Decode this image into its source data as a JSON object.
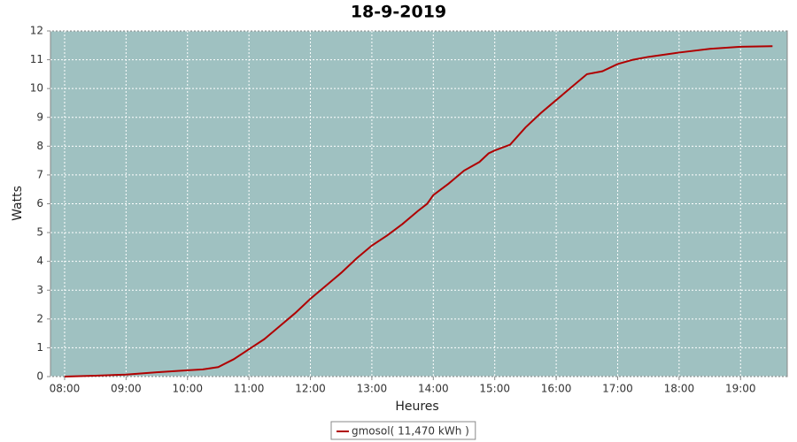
{
  "chart_data": {
    "type": "line",
    "title": "18-9-2019",
    "x_label": "Heures",
    "y_label": "Watts",
    "x": [
      8.0,
      8.5,
      9.0,
      9.5,
      10.0,
      10.25,
      10.5,
      10.75,
      11.0,
      11.25,
      11.5,
      11.75,
      12.0,
      12.25,
      12.5,
      12.75,
      13.0,
      13.25,
      13.5,
      13.75,
      13.9,
      14.0,
      14.25,
      14.5,
      14.75,
      14.9,
      15.0,
      15.25,
      15.5,
      15.75,
      16.0,
      16.25,
      16.5,
      16.75,
      17.0,
      17.25,
      17.5,
      18.0,
      18.5,
      19.0,
      19.52
    ],
    "series": [
      {
        "name": "gmosol( 11,470 kWh )",
        "color": "#b00000",
        "values": [
          0,
          0.03,
          0.07,
          0.15,
          0.22,
          0.25,
          0.33,
          0.6,
          0.95,
          1.3,
          1.75,
          2.2,
          2.7,
          3.15,
          3.6,
          4.1,
          4.55,
          4.9,
          5.3,
          5.75,
          6.0,
          6.3,
          6.7,
          7.15,
          7.45,
          7.75,
          7.85,
          8.05,
          8.65,
          9.15,
          9.6,
          10.05,
          10.5,
          10.6,
          10.85,
          11.0,
          11.1,
          11.25,
          11.38,
          11.45,
          11.47
        ]
      }
    ],
    "xlim": [
      7.77,
      19.76
    ],
    "xticks": [
      {
        "value": 8,
        "label": "08:00"
      },
      {
        "value": 9,
        "label": "09:00"
      },
      {
        "value": 10,
        "label": "10:00"
      },
      {
        "value": 11,
        "label": "11:00"
      },
      {
        "value": 12,
        "label": "12:00"
      },
      {
        "value": 13,
        "label": "13:00"
      },
      {
        "value": 14,
        "label": "14:00"
      },
      {
        "value": 15,
        "label": "15:00"
      },
      {
        "value": 16,
        "label": "16:00"
      },
      {
        "value": 17,
        "label": "17:00"
      },
      {
        "value": 18,
        "label": "18:00"
      },
      {
        "value": 19,
        "label": "19:00"
      }
    ],
    "ylim": [
      0,
      12
    ],
    "yticks": [
      0,
      1,
      2,
      3,
      4,
      5,
      6,
      7,
      8,
      9,
      10,
      11,
      12
    ],
    "grid": true,
    "background": "#9fc1c1",
    "legend": "bottom"
  }
}
